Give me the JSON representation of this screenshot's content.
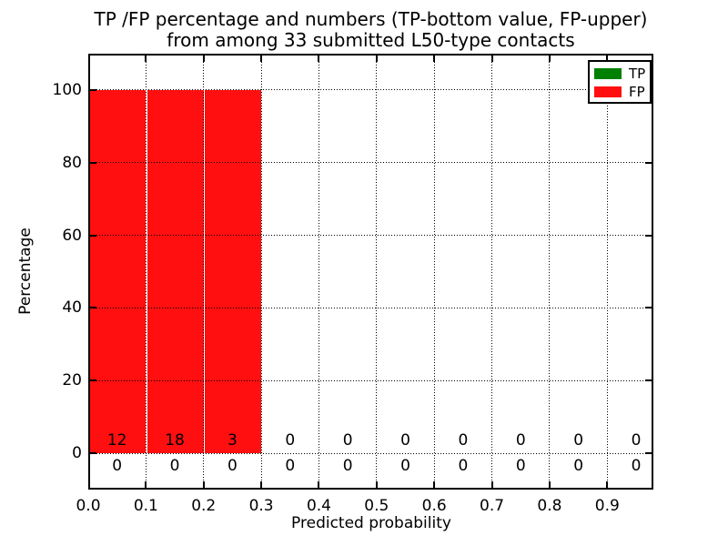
{
  "figure": {
    "title_line1": "TP /FP percentage and numbers (TP-bottom value, FP-upper)",
    "title_line2": "from among 33 submitted L50-type contacts"
  },
  "chart_data": {
    "type": "bar",
    "title": "TP /FP percentage and numbers (TP-bottom value, FP-upper)\nfrom among 33 submitted L50-type contacts",
    "xlabel": "Predicted probability",
    "ylabel": "Percentage",
    "xlim": [
      0,
      0.98
    ],
    "ylim": [
      -10,
      110
    ],
    "xtick_values": [
      0.0,
      0.1,
      0.2,
      0.3,
      0.4,
      0.5,
      0.6,
      0.7,
      0.8,
      0.9
    ],
    "xtick_labels": [
      "0.0",
      "0.1",
      "0.2",
      "0.3",
      "0.4",
      "0.5",
      "0.6",
      "0.7",
      "0.8",
      "0.9"
    ],
    "ytick_values": [
      0,
      20,
      40,
      60,
      80,
      100
    ],
    "ytick_labels": [
      "0",
      "20",
      "40",
      "60",
      "80",
      "100"
    ],
    "grid": {
      "visible": true,
      "style": "dotted",
      "color": "#000000"
    },
    "bin_starts": [
      0.0,
      0.1,
      0.2,
      0.3,
      0.4,
      0.5,
      0.6,
      0.7,
      0.8,
      0.9
    ],
    "bin_width": 0.1,
    "series": [
      {
        "name": "TP",
        "color": "#008000",
        "percent": [
          0,
          0,
          0,
          0,
          0,
          0,
          0,
          0,
          0,
          0
        ],
        "counts": [
          0,
          0,
          0,
          0,
          0,
          0,
          0,
          0,
          0,
          0
        ],
        "counts_position": "below-axis"
      },
      {
        "name": "FP",
        "color": "#ff0f0f",
        "percent": [
          100,
          100,
          100,
          0,
          0,
          0,
          0,
          0,
          0,
          0
        ],
        "counts": [
          12,
          18,
          3,
          0,
          0,
          0,
          0,
          0,
          0,
          0
        ],
        "counts_position": "above-axis"
      }
    ],
    "legend": {
      "position": "upper-right",
      "entries": [
        {
          "label": "TP",
          "color": "#008000"
        },
        {
          "label": "FP",
          "color": "#ff0f0f"
        }
      ]
    },
    "plot_background": "#ffffff"
  }
}
